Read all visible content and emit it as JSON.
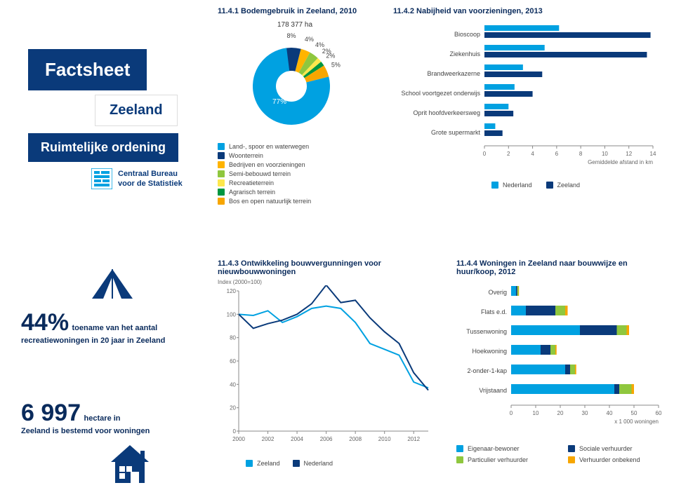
{
  "header": {
    "title_1141": "11.4.1 Bodemgebruik in Zeeland, 2010",
    "title_1142": "11.4.2 Nabijheid van voorzieningen, 2013",
    "title_1143": "11.4.3 Ontwikkeling bouwvergunningen voor nieuwbouwwoningen",
    "title_1144": "11.4.4 Woningen in Zeeland naar bouwwijze en huur/koop, 2012"
  },
  "factsheet": {
    "label": "Factsheet",
    "region": "Zeeland",
    "subtitle": "Ruimtelijke ordening",
    "cbs": "Centraal Bureau\nvoor de Statistiek"
  },
  "pie": {
    "total_label": "178 377 ha",
    "labels": [
      "8%",
      "4%",
      "4%",
      "2%",
      "2%",
      "5%",
      "77%"
    ],
    "slices": [
      {
        "label": "77%",
        "value": 77,
        "color": "#00a1e1"
      },
      {
        "label": "8%",
        "value": 8,
        "color": "#0a3a7a"
      },
      {
        "label": "4%",
        "value": 4,
        "color": "#ffb400"
      },
      {
        "label": "4%",
        "value": 4,
        "color": "#8fc73e"
      },
      {
        "label": "2%",
        "value": 2,
        "color": "#fde74c"
      },
      {
        "label": "2%",
        "value": 2,
        "color": "#009640"
      },
      {
        "label": "5%",
        "value": 5,
        "color": "#f7a600"
      }
    ],
    "legend": [
      {
        "color": "#00a1e1",
        "text": "Land-, spoor en waterwegen"
      },
      {
        "color": "#0a3a7a",
        "text": "Woonterrein"
      },
      {
        "color": "#ffb400",
        "text": "Bedrijven en voorzieningen"
      },
      {
        "color": "#8fc73e",
        "text": "Semi-bebouwd terrein"
      },
      {
        "color": "#fde74c",
        "text": "Recreatieterrein"
      },
      {
        "color": "#009640",
        "text": "Agrarisch terrein"
      },
      {
        "color": "#f7a600",
        "text": "Bos en open natuurlijk terrein"
      }
    ]
  },
  "bars_1142": {
    "categories": [
      "Bioscoop",
      "Ziekenhuis",
      "Brandweerkazerne",
      "School voortgezet onderwijs",
      "Oprit hoofdverkeersweg",
      "Grote supermarkt"
    ],
    "nederland": [
      6.2,
      5.0,
      3.2,
      2.5,
      2.0,
      0.9
    ],
    "zeeland": [
      13.8,
      13.5,
      4.8,
      4.0,
      2.4,
      1.5
    ],
    "xmax": 14,
    "xticks": [
      0,
      2,
      4,
      6,
      8,
      10,
      12,
      14
    ],
    "xlabel": "Gemiddelde afstand in km",
    "colors": {
      "nederland": "#00a1e1",
      "zeeland": "#0a3a7a"
    },
    "legend": [
      {
        "color": "#00a1e1",
        "text": "Nederland"
      },
      {
        "color": "#0a3a7a",
        "text": "Zeeland"
      }
    ]
  },
  "stat_44": {
    "value": "44%",
    "text1": "toename van het aantal",
    "text2": "recreatiewoningen in 20 jaar in Zeeland"
  },
  "stat_6997": {
    "value": "6 997",
    "unit": "hectare in",
    "text": "Zeeland is bestemd voor woningen"
  },
  "line_chart": {
    "ylabel": "Index (2000=100)",
    "ymax": 120,
    "ymin": 0,
    "yticks": [
      0,
      20,
      40,
      60,
      80,
      100,
      120
    ],
    "xticks": [
      2000,
      2002,
      2004,
      2006,
      2008,
      2010,
      2012
    ],
    "series": [
      {
        "name": "Zeeland",
        "color": "#00a1e1",
        "points": [
          [
            2000,
            100
          ],
          [
            2001,
            99
          ],
          [
            2002,
            103
          ],
          [
            2003,
            93
          ],
          [
            2004,
            98
          ],
          [
            2005,
            105
          ],
          [
            2006,
            107
          ],
          [
            2007,
            105
          ],
          [
            2008,
            93
          ],
          [
            2009,
            75
          ],
          [
            2010,
            70
          ],
          [
            2011,
            65
          ],
          [
            2012,
            42
          ],
          [
            2013,
            37
          ]
        ]
      },
      {
        "name": "Nederland",
        "color": "#0a3a7a",
        "points": [
          [
            2000,
            100
          ],
          [
            2001,
            88
          ],
          [
            2002,
            92
          ],
          [
            2003,
            95
          ],
          [
            2004,
            100
          ],
          [
            2005,
            109
          ],
          [
            2006,
            125
          ],
          [
            2007,
            110
          ],
          [
            2008,
            112
          ],
          [
            2009,
            97
          ],
          [
            2010,
            85
          ],
          [
            2011,
            75
          ],
          [
            2012,
            50
          ],
          [
            2013,
            35
          ]
        ]
      }
    ],
    "legend": [
      {
        "color": "#00a1e1",
        "text": "Zeeland"
      },
      {
        "color": "#0a3a7a",
        "text": "Nederland"
      }
    ]
  },
  "bars_1144": {
    "categories": [
      "Overig",
      "Flats e.d.",
      "Tussenwoning",
      "Hoekwoning",
      "2-onder-1-kap",
      "Vrijstaand"
    ],
    "xmax": 60,
    "xticks": [
      0,
      10,
      20,
      30,
      40,
      50,
      60
    ],
    "xlabel": "x 1 000 woningen",
    "stacks": [
      {
        "name": "Eigenaar-bewoner",
        "color": "#00a1e1"
      },
      {
        "name": "Sociale verhuurder",
        "color": "#0a3a7a"
      },
      {
        "name": "Particulier verhuurder",
        "color": "#8fc73e"
      },
      {
        "name": "Verhuurder onbekend",
        "color": "#f7a600"
      }
    ],
    "data": [
      [
        2,
        0.5,
        0.5,
        0.2
      ],
      [
        6,
        12,
        4,
        1
      ],
      [
        28,
        15,
        4,
        1
      ],
      [
        12,
        4,
        2,
        0.5
      ],
      [
        22,
        2,
        2,
        0.5
      ],
      [
        42,
        2,
        5,
        1
      ]
    ]
  }
}
